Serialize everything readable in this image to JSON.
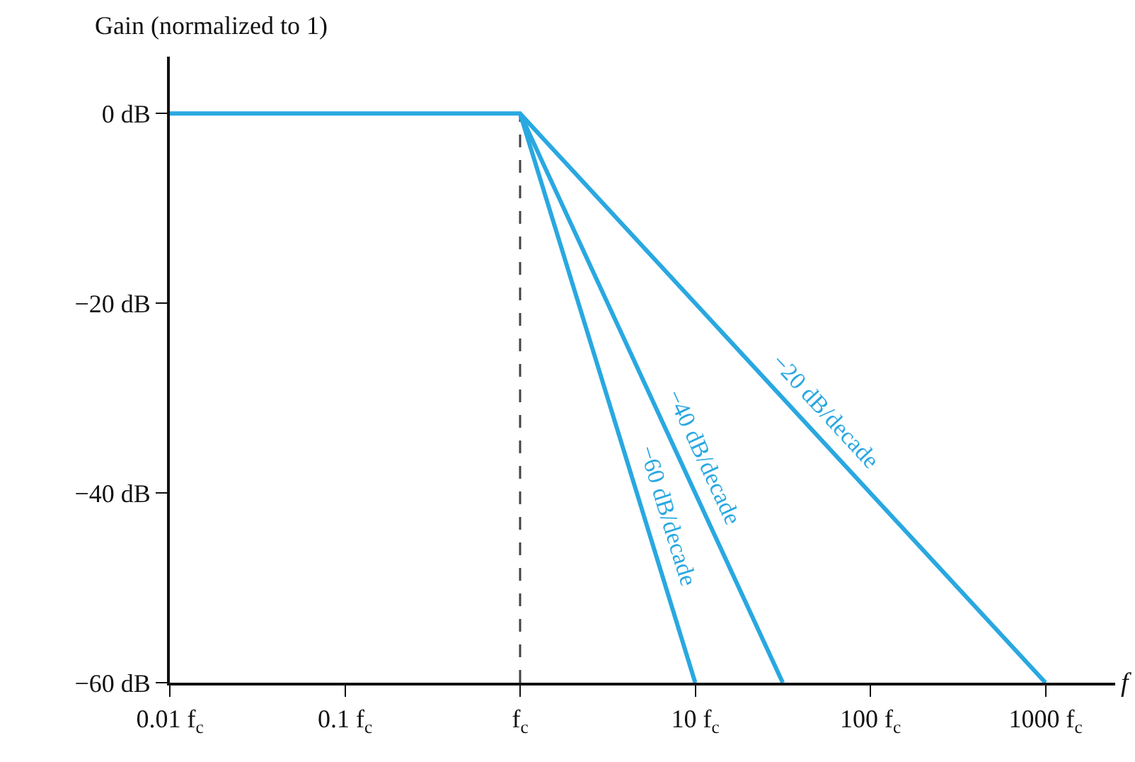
{
  "chart_data": {
    "type": "line",
    "ylabel": "Gain (normalized to 1)",
    "xlabel": "f",
    "log": "x",
    "xlim": [
      0.01,
      2500
    ],
    "ylim": [
      -60,
      6
    ],
    "xticks": [
      {
        "value": 0.01,
        "label": "0.01 f$_{c}$"
      },
      {
        "value": 0.1,
        "label": "0.1 f$_{c}$"
      },
      {
        "value": 1,
        "label": "f$_{c}$"
      },
      {
        "value": 10,
        "label": "10 f$_{c}$"
      },
      {
        "value": 100,
        "label": "100 f$_{c}$"
      },
      {
        "value": 1000,
        "label": "1000 f$_{c}$"
      }
    ],
    "yticks": [
      {
        "value": 0,
        "label": "0 dB"
      },
      {
        "value": -20,
        "label": "−20 dB"
      },
      {
        "value": -40,
        "label": "−40 dB"
      },
      {
        "value": -60,
        "label": "−60 dB"
      }
    ],
    "series": [
      {
        "name": "−20 dB/decade",
        "color": "#29a8e0",
        "x": [
          0.01,
          1,
          1000
        ],
        "values": [
          0,
          0,
          -60
        ]
      },
      {
        "name": "−40 dB/decade",
        "color": "#29a8e0",
        "x": [
          1,
          31.6
        ],
        "values": [
          0,
          -60
        ]
      },
      {
        "name": "−60 dB/decade",
        "color": "#29a8e0",
        "x": [
          1,
          10
        ],
        "values": [
          0,
          -60
        ]
      }
    ],
    "ref_lines": [
      {
        "axis": "x",
        "value": 1,
        "color": "#444444",
        "line_style": "dashed"
      }
    ],
    "grid": false,
    "legend": false,
    "marker": "none",
    "line_style": "solid"
  }
}
